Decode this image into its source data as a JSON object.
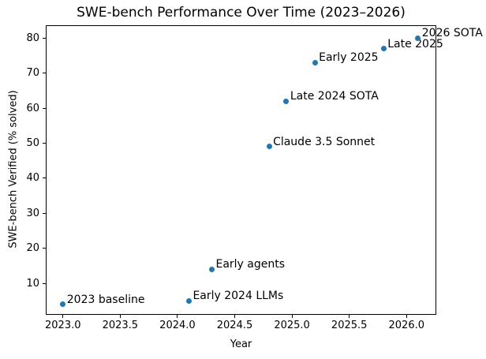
{
  "chart_data": {
    "type": "scatter",
    "title": "SWE-bench Performance Over Time (2023–2026)",
    "xlabel": "Year",
    "ylabel": "SWE-bench Verified (% solved)",
    "xlim": [
      2022.85,
      2026.26
    ],
    "ylim": [
      1,
      83.7
    ],
    "grid": false,
    "legend": "none",
    "marker_color": "#1f77b4",
    "x_ticks": [
      {
        "value": 2023.0,
        "label": "2023.0"
      },
      {
        "value": 2023.5,
        "label": "2023.5"
      },
      {
        "value": 2024.0,
        "label": "2024.0"
      },
      {
        "value": 2024.5,
        "label": "2024.5"
      },
      {
        "value": 2025.0,
        "label": "2025.0"
      },
      {
        "value": 2025.5,
        "label": "2025.5"
      },
      {
        "value": 2026.0,
        "label": "2026.0"
      }
    ],
    "y_ticks": [
      {
        "value": 10,
        "label": "10"
      },
      {
        "value": 20,
        "label": "20"
      },
      {
        "value": 30,
        "label": "30"
      },
      {
        "value": 40,
        "label": "40"
      },
      {
        "value": 50,
        "label": "50"
      },
      {
        "value": 60,
        "label": "60"
      },
      {
        "value": 70,
        "label": "70"
      },
      {
        "value": 80,
        "label": "80"
      }
    ],
    "points": [
      {
        "x": 2023.0,
        "y": 4,
        "label": "2023 baseline"
      },
      {
        "x": 2024.1,
        "y": 5,
        "label": "Early 2024 LLMs"
      },
      {
        "x": 2024.3,
        "y": 14,
        "label": "Early agents"
      },
      {
        "x": 2024.8,
        "y": 49,
        "label": "Claude 3.5 Sonnet"
      },
      {
        "x": 2024.95,
        "y": 62,
        "label": "Late 2024 SOTA"
      },
      {
        "x": 2025.2,
        "y": 73,
        "label": "Early 2025"
      },
      {
        "x": 2025.8,
        "y": 77,
        "label": "Late 2025"
      },
      {
        "x": 2026.1,
        "y": 80,
        "label": "2026 SOTA"
      }
    ]
  }
}
